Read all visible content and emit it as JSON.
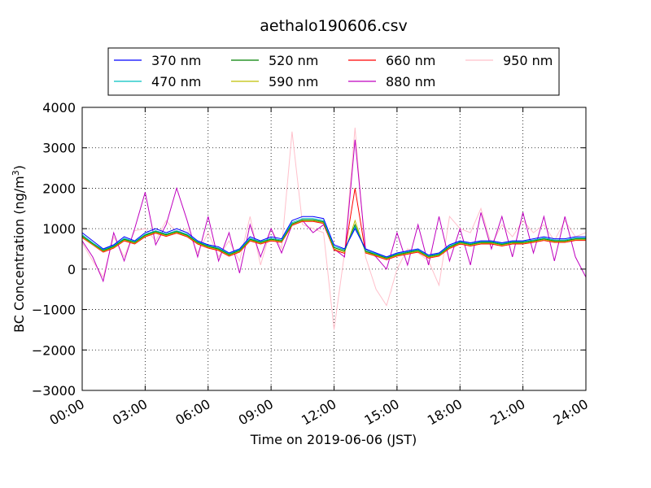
{
  "chart_data": {
    "type": "line",
    "title": "aethalo190606.csv",
    "xlabel": "Time on 2019-06-06 (JST)",
    "ylabel_main": "BC Concentration (ng/m",
    "ylabel_sup": "3",
    "ylabel_close": ")",
    "xlim": [
      0,
      24
    ],
    "ylim": [
      -3000,
      4000
    ],
    "grid": true,
    "legend_position": "top-center",
    "x_ticks": [
      {
        "value": 0,
        "label": "00:00"
      },
      {
        "value": 3,
        "label": "03:00"
      },
      {
        "value": 6,
        "label": "06:00"
      },
      {
        "value": 9,
        "label": "09:00"
      },
      {
        "value": 12,
        "label": "12:00"
      },
      {
        "value": 15,
        "label": "15:00"
      },
      {
        "value": 18,
        "label": "18:00"
      },
      {
        "value": 21,
        "label": "21:00"
      },
      {
        "value": 24,
        "label": "24:00"
      }
    ],
    "y_ticks": [
      {
        "value": 4000,
        "label": "4000"
      },
      {
        "value": 3000,
        "label": "3000"
      },
      {
        "value": 2000,
        "label": "2000"
      },
      {
        "value": 1000,
        "label": "1000"
      },
      {
        "value": 0,
        "label": "0"
      },
      {
        "value": -1000,
        "label": "−1000"
      },
      {
        "value": -2000,
        "label": "−2000"
      },
      {
        "value": -3000,
        "label": "−3000"
      }
    ],
    "x": [
      0.0,
      0.5,
      1.0,
      1.5,
      2.0,
      2.5,
      3.0,
      3.5,
      4.0,
      4.5,
      5.0,
      5.5,
      6.0,
      6.5,
      7.0,
      7.5,
      8.0,
      8.5,
      9.0,
      9.5,
      10.0,
      10.5,
      11.0,
      11.5,
      12.0,
      12.5,
      13.0,
      13.5,
      14.0,
      14.5,
      15.0,
      15.5,
      16.0,
      16.5,
      17.0,
      17.5,
      18.0,
      18.5,
      19.0,
      19.5,
      20.0,
      20.5,
      21.0,
      21.5,
      22.0,
      22.5,
      23.0,
      23.5,
      24.0
    ],
    "series": [
      {
        "name": "370 nm",
        "color": "#0000ff",
        "values": [
          900,
          700,
          500,
          600,
          800,
          700,
          900,
          1000,
          900,
          1000,
          900,
          700,
          600,
          550,
          400,
          500,
          800,
          700,
          800,
          750,
          1200,
          1300,
          1300,
          1250,
          600,
          500,
          1000,
          500,
          400,
          300,
          400,
          450,
          500,
          350,
          400,
          600,
          700,
          650,
          700,
          700,
          650,
          700,
          700,
          750,
          800,
          750,
          750,
          800,
          800
        ]
      },
      {
        "name": "470 nm",
        "color": "#00c0c0",
        "values": [
          850,
          650,
          480,
          580,
          760,
          680,
          860,
          950,
          870,
          950,
          860,
          680,
          580,
          520,
          380,
          480,
          760,
          680,
          760,
          720,
          1150,
          1250,
          1250,
          1200,
          560,
          480,
          1050,
          470,
          380,
          290,
          380,
          430,
          480,
          330,
          380,
          570,
          680,
          630,
          680,
          680,
          630,
          680,
          680,
          720,
          770,
          720,
          720,
          770,
          770
        ]
      },
      {
        "name": "520 nm",
        "color": "#008000",
        "values": [
          820,
          630,
          460,
          560,
          740,
          660,
          840,
          930,
          850,
          930,
          840,
          660,
          560,
          500,
          360,
          460,
          740,
          660,
          740,
          700,
          1120,
          1220,
          1220,
          1170,
          530,
          450,
          1100,
          440,
          360,
          270,
          360,
          410,
          460,
          310,
          360,
          550,
          660,
          610,
          660,
          660,
          610,
          660,
          660,
          700,
          750,
          700,
          700,
          750,
          750
        ]
      },
      {
        "name": "590 nm",
        "color": "#bfbf00",
        "values": [
          800,
          610,
          440,
          540,
          720,
          640,
          820,
          910,
          830,
          910,
          820,
          640,
          540,
          480,
          340,
          440,
          720,
          640,
          720,
          680,
          1100,
          1200,
          1200,
          1150,
          500,
          420,
          1200,
          420,
          340,
          250,
          340,
          390,
          440,
          290,
          340,
          530,
          640,
          590,
          640,
          640,
          590,
          640,
          640,
          680,
          730,
          680,
          680,
          730,
          730
        ]
      },
      {
        "name": "660 nm",
        "color": "#ff0000",
        "values": [
          780,
          600,
          420,
          520,
          700,
          620,
          800,
          890,
          810,
          890,
          800,
          620,
          520,
          460,
          320,
          420,
          700,
          620,
          700,
          660,
          1080,
          1180,
          1180,
          1130,
          470,
          390,
          2000,
          400,
          320,
          230,
          320,
          370,
          420,
          270,
          320,
          510,
          620,
          570,
          620,
          620,
          570,
          620,
          620,
          660,
          710,
          660,
          660,
          710,
          710
        ]
      },
      {
        "name": "880 nm",
        "color": "#bf00bf",
        "values": [
          700,
          300,
          -300,
          900,
          200,
          1000,
          1900,
          600,
          1100,
          2000,
          1200,
          300,
          1300,
          200,
          900,
          -100,
          1100,
          300,
          1000,
          400,
          1100,
          1200,
          900,
          1100,
          500,
          300,
          3200,
          500,
          300,
          0,
          900,
          100,
          1100,
          100,
          1300,
          200,
          1000,
          100,
          1400,
          500,
          1300,
          300,
          1400,
          400,
          1300,
          200,
          1300,
          300,
          -200
        ]
      },
      {
        "name": "950 nm",
        "color": "#ffc0cb",
        "values": [
          650,
          200,
          -200,
          800,
          300,
          950,
          1000,
          700,
          1200,
          900,
          1000,
          400,
          900,
          300,
          700,
          200,
          1300,
          100,
          1000,
          500,
          3400,
          1100,
          1000,
          900,
          -1500,
          400,
          3500,
          300,
          -500,
          -900,
          0,
          500,
          400,
          200,
          -400,
          1300,
          1000,
          900,
          1500,
          600,
          1100,
          800,
          1200,
          900,
          1100,
          700,
          1200,
          800,
          900
        ]
      }
    ]
  }
}
